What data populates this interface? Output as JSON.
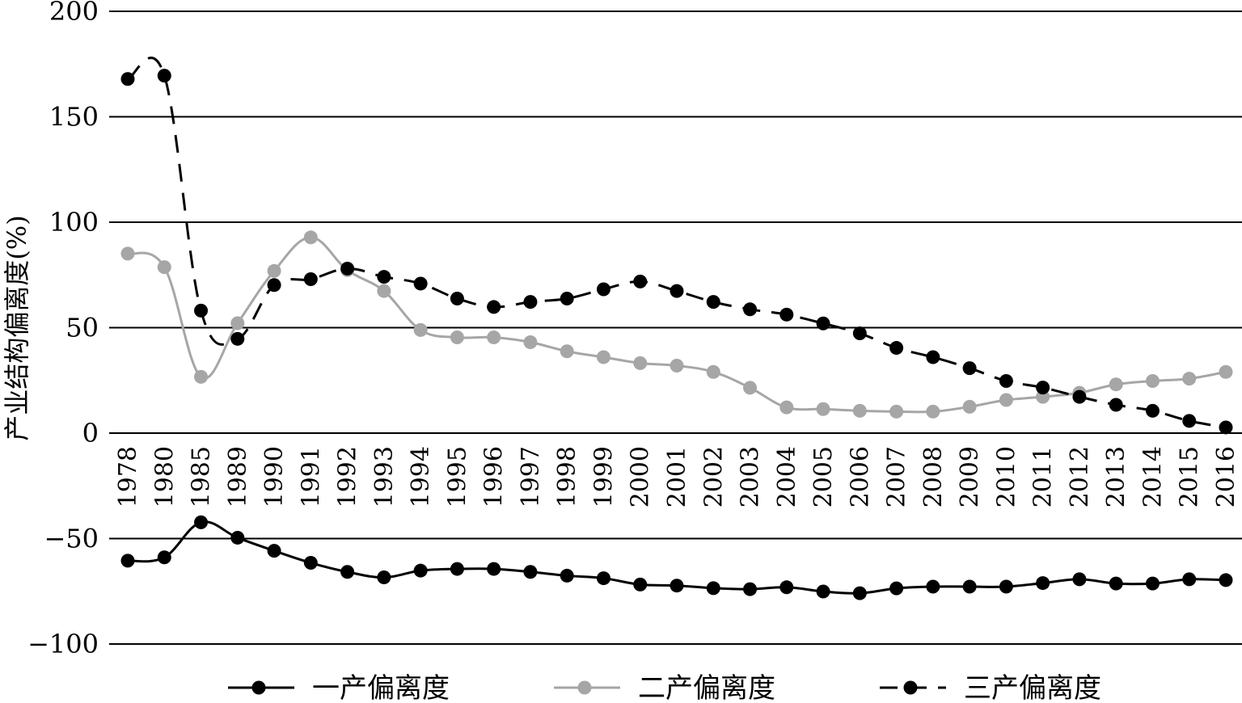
{
  "chart_data": {
    "type": "line",
    "ylabel": "产业结构偏离度(%)",
    "ylim": [
      -100,
      200
    ],
    "yticks": [
      200,
      150,
      100,
      50,
      0,
      -50,
      -100
    ],
    "ytick_labels": [
      "200",
      "150",
      "100",
      "50",
      "0",
      "−50",
      "−100"
    ],
    "grid": true,
    "legend_position": "bottom",
    "categories": [
      "1978",
      "1980",
      "1985",
      "1989",
      "1990",
      "1991",
      "1992",
      "1993",
      "1994",
      "1995",
      "1996",
      "1997",
      "1998",
      "1999",
      "2000",
      "2001",
      "2002",
      "2003",
      "2004",
      "2005",
      "2006",
      "2007",
      "2008",
      "2009",
      "2010",
      "2011",
      "2012",
      "2013",
      "2014",
      "2015",
      "2016"
    ],
    "series": [
      {
        "name": "一产偏离度",
        "color": "#000000",
        "dash": "solid",
        "values": [
          -60.5,
          -58.9,
          -42.3,
          -49.6,
          -55.8,
          -61.5,
          -65.8,
          -68.4,
          -65.2,
          -64.4,
          -64.4,
          -65.8,
          -67.6,
          -68.8,
          -71.8,
          -72.3,
          -73.5,
          -74.0,
          -73.1,
          -75.1,
          -75.9,
          -73.6,
          -72.8,
          -72.8,
          -72.8,
          -71.1,
          -69.3,
          -71.3,
          -71.3,
          -69.3,
          -69.7
        ]
      },
      {
        "name": "二产偏离度",
        "color": "#a6a6a6",
        "dash": "solid",
        "values": [
          85.1,
          78.7,
          26.7,
          52.1,
          76.9,
          92.8,
          77.3,
          67.4,
          48.9,
          45.4,
          45.4,
          43.1,
          38.8,
          36.0,
          33.2,
          32.0,
          29.0,
          21.5,
          12.2,
          11.4,
          10.6,
          10.2,
          10.2,
          12.5,
          15.7,
          17.2,
          19.1,
          23.1,
          24.7,
          25.8,
          29.0
        ]
      },
      {
        "name": "三产偏离度",
        "color": "#000000",
        "dash": "dashed",
        "values": [
          167.9,
          169.5,
          58.1,
          44.7,
          70.2,
          73.0,
          78.0,
          74.1,
          70.9,
          63.8,
          59.8,
          62.2,
          63.8,
          68.2,
          71.9,
          67.4,
          62.2,
          58.7,
          56.2,
          52.0,
          47.3,
          40.4,
          36.0,
          30.8,
          24.7,
          21.6,
          17.2,
          13.4,
          10.6,
          5.8,
          2.7
        ]
      }
    ]
  }
}
